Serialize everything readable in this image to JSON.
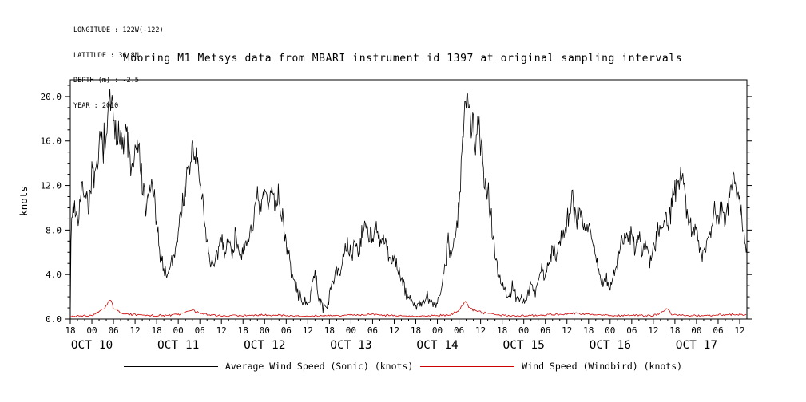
{
  "header": {
    "lines": [
      "LONGITUDE : 122W(-122)",
      "LATITUDE : 36.8N",
      "DEPTH (m) : -2.5",
      "YEAR : 2010"
    ]
  },
  "title": "Mooring M1 Metsys data from MBARI instrument id 1397 at original sampling intervals",
  "legend": [
    {
      "label": "Average Wind Speed (Sonic) (knots)",
      "color": "#000000"
    },
    {
      "label": "Wind Speed (Windbird) (knots)",
      "color": "#cc0000"
    }
  ],
  "chart_data": {
    "type": "line",
    "title": "Mooring M1 Metsys data from MBARI instrument id 1397 at original sampling intervals",
    "xlabel": "",
    "ylabel": "knots",
    "grid": false,
    "legend_position": "bottom",
    "x_axis": {
      "description": "time, hours from Oct 9 2010 18:00",
      "t_range": [
        0,
        188
      ],
      "tick_interval_hours": 6,
      "hour_labels": [
        "18",
        "00",
        "06",
        "12"
      ],
      "day_labels": [
        "OCT 10",
        "OCT 11",
        "OCT 12",
        "OCT 13",
        "OCT 14",
        "OCT 15",
        "OCT 16",
        "OCT 17"
      ]
    },
    "y_axis": {
      "label": "knots",
      "range": [
        0,
        21.5
      ],
      "ticks": [
        0,
        4,
        8,
        12,
        16,
        20
      ],
      "minor_step": 1
    },
    "series": [
      {
        "name": "Average Wind Speed (Sonic) (knots)",
        "color": "#000000",
        "noise": {
          "base": 0.5,
          "scale": 0.11,
          "seed": 7,
          "step_hours": 0.2
        },
        "keypoints": [
          [
            0,
            0.5
          ],
          [
            0.3,
            9
          ],
          [
            1,
            10.5
          ],
          [
            2,
            9
          ],
          [
            3,
            11
          ],
          [
            4,
            12
          ],
          [
            5,
            10
          ],
          [
            6,
            13
          ],
          [
            7,
            12
          ],
          [
            8,
            15
          ],
          [
            9,
            16.5
          ],
          [
            10,
            15
          ],
          [
            11,
            20.5
          ],
          [
            11.5,
            19
          ],
          [
            12,
            17
          ],
          [
            13,
            16
          ],
          [
            13.5,
            18.5
          ],
          [
            14,
            17
          ],
          [
            15,
            15
          ],
          [
            15.5,
            17.5
          ],
          [
            16,
            16
          ],
          [
            17,
            13
          ],
          [
            18,
            14.5
          ],
          [
            19,
            15.5
          ],
          [
            20,
            12
          ],
          [
            21,
            9.5
          ],
          [
            22,
            11.5
          ],
          [
            23,
            12
          ],
          [
            24,
            8
          ],
          [
            25,
            6
          ],
          [
            26,
            4.5
          ],
          [
            27,
            4
          ],
          [
            28,
            5
          ],
          [
            29,
            6
          ],
          [
            30,
            8
          ],
          [
            31,
            10
          ],
          [
            32,
            12
          ],
          [
            33,
            13
          ],
          [
            34,
            15.8
          ],
          [
            34.5,
            14
          ],
          [
            35,
            15
          ],
          [
            36,
            12
          ],
          [
            37,
            10
          ],
          [
            38,
            7
          ],
          [
            39,
            5
          ],
          [
            40,
            4.5
          ],
          [
            41,
            6
          ],
          [
            42,
            7.5
          ],
          [
            43,
            6
          ],
          [
            44,
            7
          ],
          [
            45,
            6
          ],
          [
            46,
            7.5
          ],
          [
            47,
            6.5
          ],
          [
            48,
            5.5
          ],
          [
            49,
            6.5
          ],
          [
            50,
            8
          ],
          [
            51,
            9
          ],
          [
            52,
            10.5
          ],
          [
            53,
            9.5
          ],
          [
            54,
            11.5
          ],
          [
            55,
            10
          ],
          [
            56,
            11.8
          ],
          [
            57,
            10.5
          ],
          [
            58,
            11
          ],
          [
            59,
            9
          ],
          [
            60,
            7
          ],
          [
            61,
            5
          ],
          [
            62,
            3.5
          ],
          [
            63,
            2.5
          ],
          [
            64,
            2
          ],
          [
            65,
            1.5
          ],
          [
            66,
            1
          ],
          [
            67,
            3
          ],
          [
            68,
            4
          ],
          [
            69,
            2
          ],
          [
            70,
            1.2
          ],
          [
            71,
            1
          ],
          [
            72,
            2
          ],
          [
            73,
            3.5
          ],
          [
            74,
            5
          ],
          [
            75,
            4
          ],
          [
            76,
            5.5
          ],
          [
            77,
            6.5
          ],
          [
            78,
            5.5
          ],
          [
            79,
            7
          ],
          [
            80,
            6
          ],
          [
            81,
            7.5
          ],
          [
            82,
            8.5
          ],
          [
            83,
            8
          ],
          [
            84,
            7
          ],
          [
            85,
            8
          ],
          [
            86,
            6.5
          ],
          [
            87,
            7.5
          ],
          [
            88,
            6
          ],
          [
            89,
            5
          ],
          [
            90,
            6
          ],
          [
            91,
            4.5
          ],
          [
            92,
            3.5
          ],
          [
            93,
            2.5
          ],
          [
            94,
            2
          ],
          [
            95,
            1.5
          ],
          [
            96,
            1.2
          ],
          [
            97,
            1.5
          ],
          [
            98,
            1.2
          ],
          [
            99,
            2
          ],
          [
            100,
            1.5
          ],
          [
            101,
            1.2
          ],
          [
            102,
            1.5
          ],
          [
            103,
            2.5
          ],
          [
            104,
            5
          ],
          [
            105,
            7
          ],
          [
            106,
            6
          ],
          [
            107,
            7.5
          ],
          [
            107.5,
            8.5
          ],
          [
            108,
            10
          ],
          [
            108.5,
            13
          ],
          [
            109,
            16
          ],
          [
            109.5,
            18
          ],
          [
            110,
            19.6
          ],
          [
            110.5,
            18
          ],
          [
            111,
            19
          ],
          [
            111.5,
            17
          ],
          [
            112,
            18
          ],
          [
            112.5,
            16.5
          ],
          [
            113,
            17.5
          ],
          [
            113.5,
            18.8
          ],
          [
            114,
            16
          ],
          [
            115,
            12.5
          ],
          [
            115.5,
            12
          ],
          [
            116,
            12.2
          ],
          [
            117,
            9
          ],
          [
            118,
            6
          ],
          [
            119,
            4
          ],
          [
            120,
            3
          ],
          [
            121,
            2.5
          ],
          [
            122,
            2
          ],
          [
            123,
            3
          ],
          [
            124,
            2
          ],
          [
            125,
            1.8
          ],
          [
            126,
            1.5
          ],
          [
            127,
            2
          ],
          [
            128,
            3
          ],
          [
            129,
            2.5
          ],
          [
            130,
            3.5
          ],
          [
            131,
            4.5
          ],
          [
            132,
            4
          ],
          [
            133,
            5
          ],
          [
            134,
            6.5
          ],
          [
            135,
            5.5
          ],
          [
            136,
            7
          ],
          [
            137,
            8
          ],
          [
            138,
            9
          ],
          [
            139,
            10
          ],
          [
            139.5,
            10.8
          ],
          [
            140,
            10
          ],
          [
            141,
            9
          ],
          [
            142,
            9.8
          ],
          [
            143,
            8
          ],
          [
            144,
            8.8
          ],
          [
            145,
            7
          ],
          [
            146,
            5.5
          ],
          [
            147,
            4
          ],
          [
            148,
            3
          ],
          [
            149,
            3.5
          ],
          [
            150,
            3
          ],
          [
            151,
            4
          ],
          [
            152,
            5
          ],
          [
            153,
            6.5
          ],
          [
            154,
            7.5
          ],
          [
            155,
            7
          ],
          [
            156,
            8
          ],
          [
            157,
            6.5
          ],
          [
            158,
            7.5
          ],
          [
            159,
            6
          ],
          [
            160,
            7
          ],
          [
            161,
            5.5
          ],
          [
            162,
            6.5
          ],
          [
            163,
            7.5
          ],
          [
            164,
            8.5
          ],
          [
            165,
            9.5
          ],
          [
            166,
            8.5
          ],
          [
            167,
            10
          ],
          [
            168,
            11
          ],
          [
            169,
            12.8
          ],
          [
            169.5,
            12
          ],
          [
            170,
            12.5
          ],
          [
            171,
            11
          ],
          [
            172,
            9
          ],
          [
            173,
            7.5
          ],
          [
            174,
            8
          ],
          [
            175,
            6.5
          ],
          [
            176,
            6
          ],
          [
            177,
            7
          ],
          [
            178,
            8.5
          ],
          [
            179,
            9.5
          ],
          [
            180,
            9
          ],
          [
            181,
            10
          ],
          [
            182,
            9
          ],
          [
            183,
            11
          ],
          [
            184,
            12.8
          ],
          [
            184.5,
            12
          ],
          [
            185,
            12.5
          ],
          [
            186,
            11
          ],
          [
            187,
            8
          ],
          [
            188,
            6.5
          ]
        ]
      },
      {
        "name": "Wind Speed (Windbird) (knots)",
        "color": "#cc0000",
        "noise": {
          "base": 0.07,
          "scale": 0.12,
          "seed": 3,
          "step_hours": 0.3
        },
        "keypoints": [
          [
            0,
            0.25
          ],
          [
            6,
            0.3
          ],
          [
            9,
            0.8
          ],
          [
            10,
            1.2
          ],
          [
            11,
            1.8
          ],
          [
            12,
            1.0
          ],
          [
            13,
            0.7
          ],
          [
            14,
            0.5
          ],
          [
            18,
            0.4
          ],
          [
            24,
            0.3
          ],
          [
            30,
            0.4
          ],
          [
            33,
            0.7
          ],
          [
            34,
            0.8
          ],
          [
            36,
            0.5
          ],
          [
            40,
            0.3
          ],
          [
            48,
            0.3
          ],
          [
            54,
            0.4
          ],
          [
            60,
            0.3
          ],
          [
            66,
            0.25
          ],
          [
            72,
            0.3
          ],
          [
            78,
            0.35
          ],
          [
            84,
            0.4
          ],
          [
            90,
            0.3
          ],
          [
            96,
            0.25
          ],
          [
            102,
            0.3
          ],
          [
            106,
            0.4
          ],
          [
            108,
            0.8
          ],
          [
            109,
            1.3
          ],
          [
            110,
            1.5
          ],
          [
            111,
            1.0
          ],
          [
            112,
            0.8
          ],
          [
            114,
            0.6
          ],
          [
            116,
            0.5
          ],
          [
            120,
            0.35
          ],
          [
            126,
            0.3
          ],
          [
            132,
            0.35
          ],
          [
            138,
            0.45
          ],
          [
            140,
            0.5
          ],
          [
            144,
            0.4
          ],
          [
            150,
            0.3
          ],
          [
            156,
            0.35
          ],
          [
            162,
            0.3
          ],
          [
            166,
            0.9
          ],
          [
            167,
            0.4
          ],
          [
            168,
            0.35
          ],
          [
            174,
            0.3
          ],
          [
            180,
            0.35
          ],
          [
            184,
            0.4
          ],
          [
            188,
            0.35
          ]
        ]
      }
    ]
  }
}
